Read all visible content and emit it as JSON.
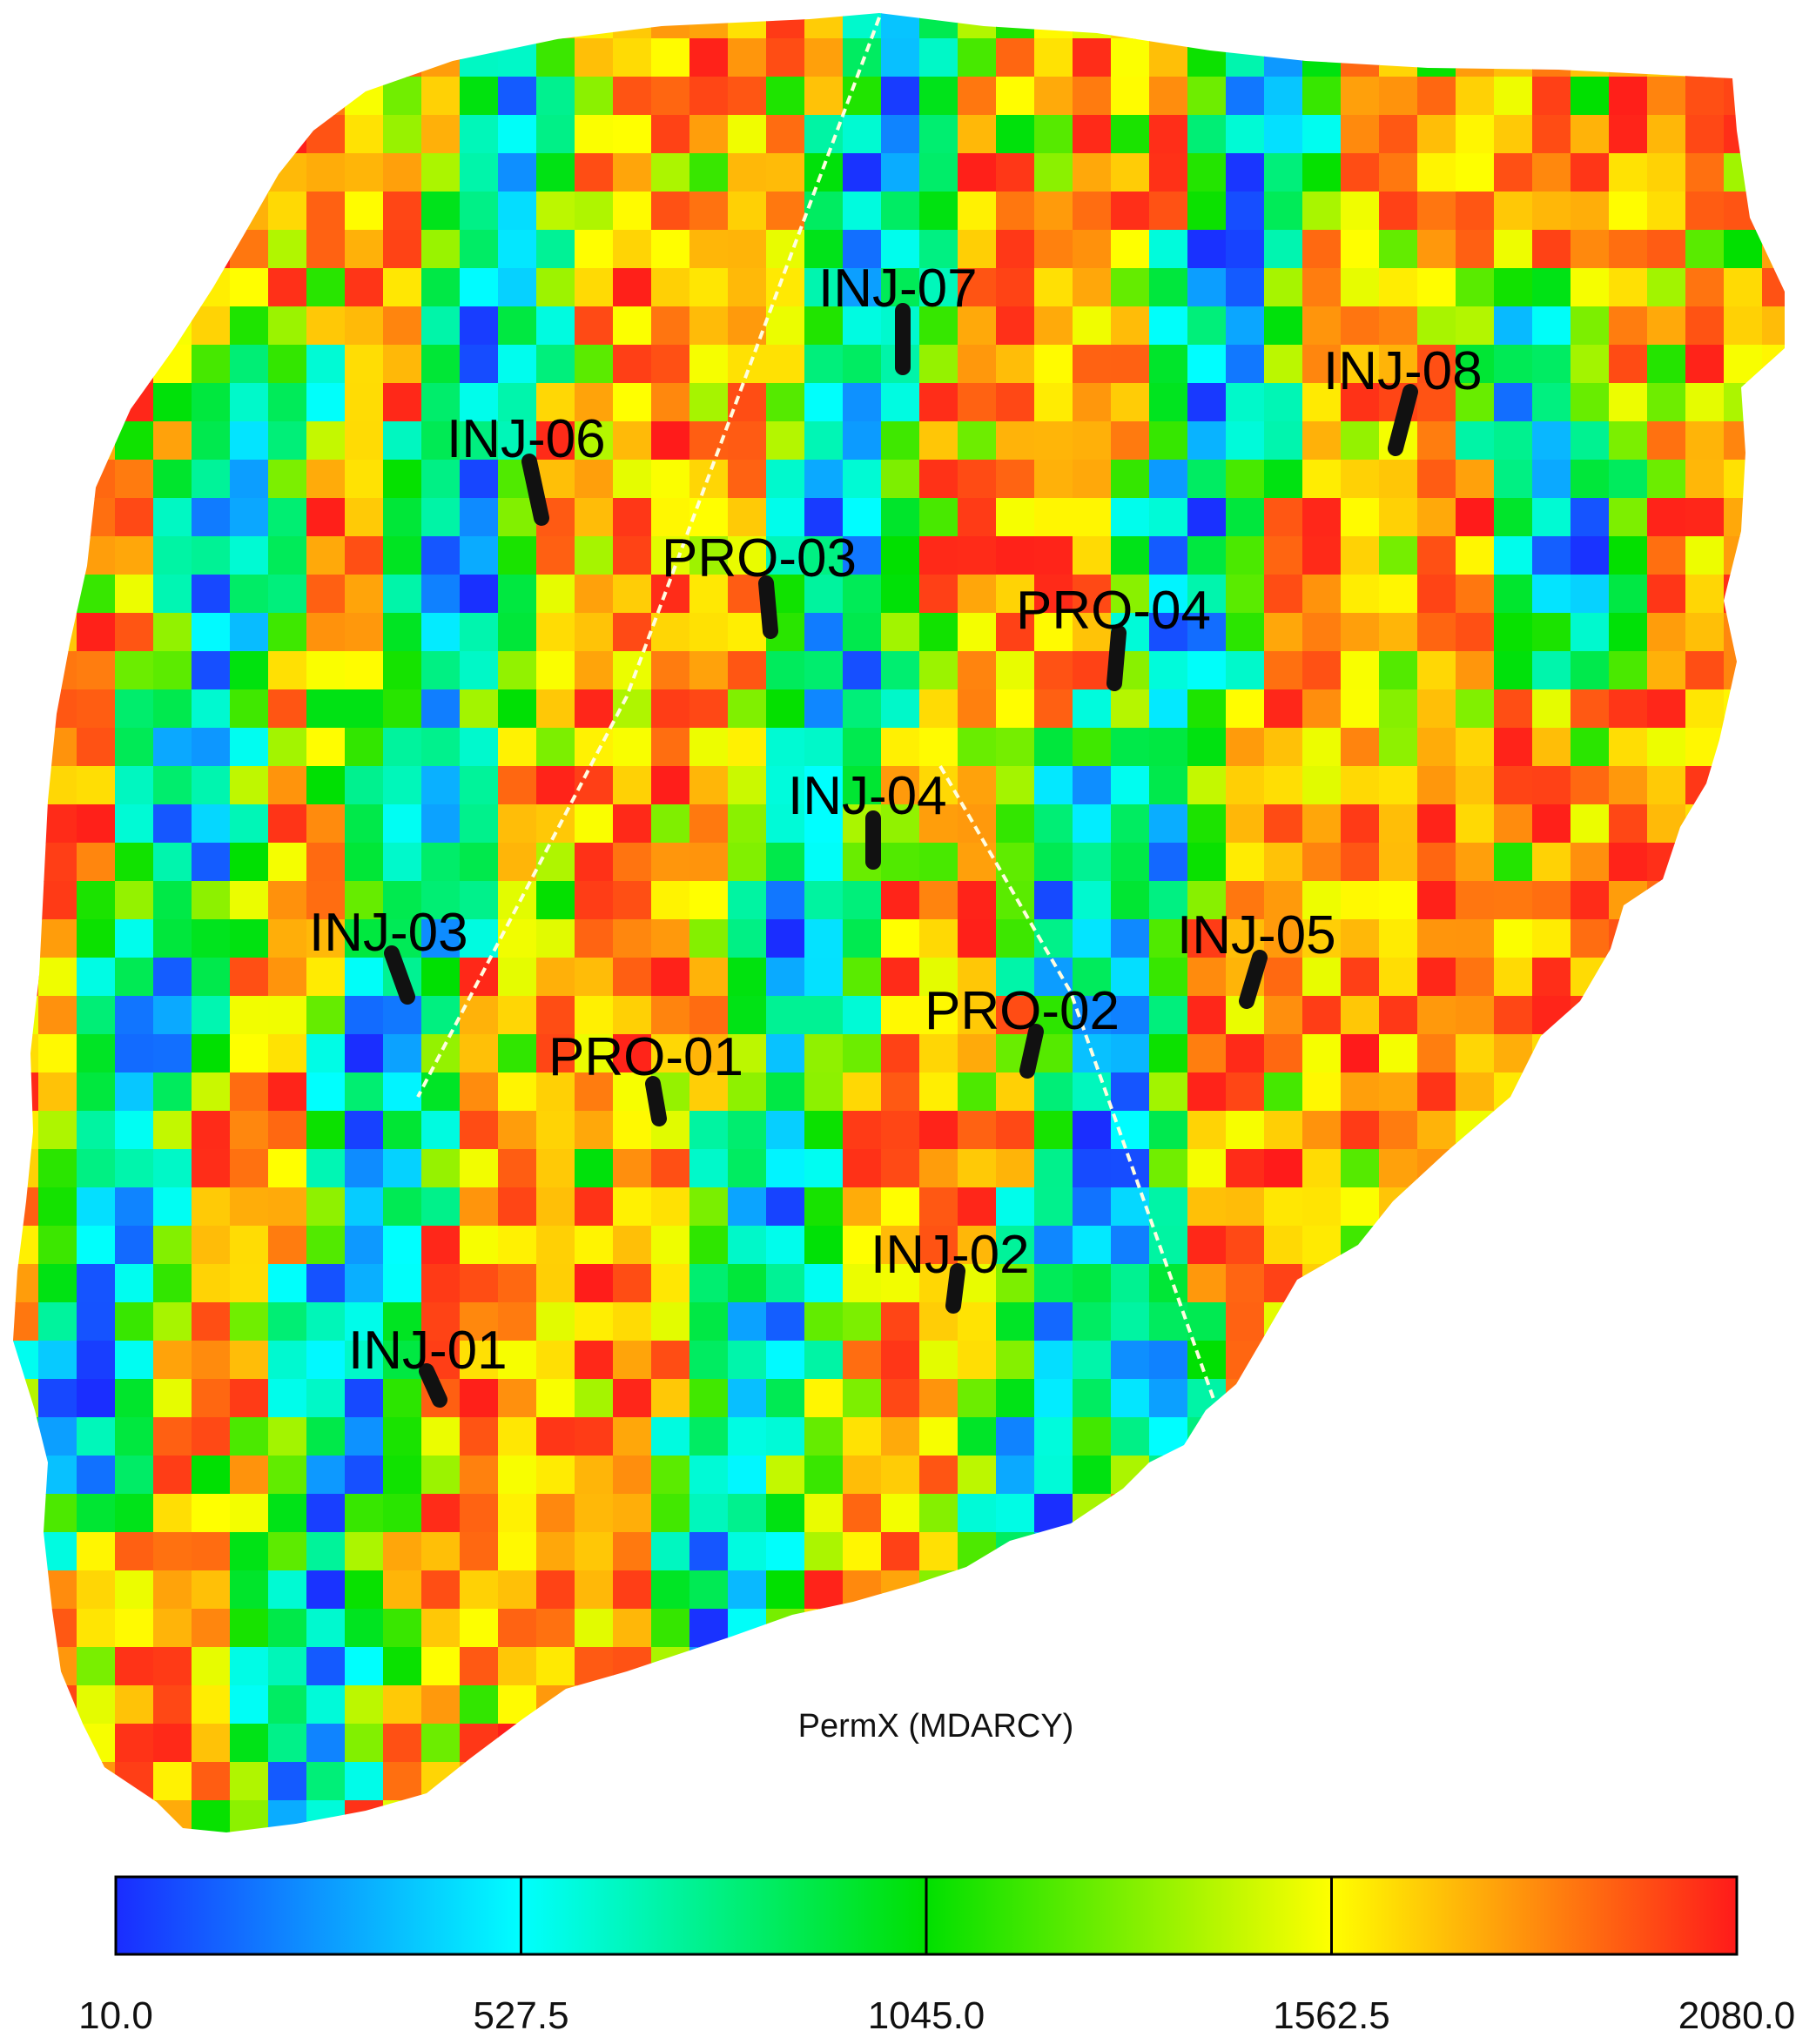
{
  "map": {
    "property_label": "PermX (MDARCY)",
    "colormap": [
      "#1a2cff",
      "#00ffff",
      "#00e000",
      "#ffff00",
      "#ff1a1a"
    ],
    "fault_color": "#fffde0",
    "well_color": "#111111"
  },
  "colorbar": {
    "min": 10.0,
    "max": 2080.0,
    "ticks": [
      "10.0",
      "527.5",
      "1045.0",
      "1562.5",
      "2080.0"
    ]
  },
  "wells": [
    {
      "name": "INJ-01",
      "type": "injector"
    },
    {
      "name": "INJ-02",
      "type": "injector"
    },
    {
      "name": "INJ-03",
      "type": "injector"
    },
    {
      "name": "INJ-04",
      "type": "injector"
    },
    {
      "name": "INJ-05",
      "type": "injector"
    },
    {
      "name": "INJ-06",
      "type": "injector"
    },
    {
      "name": "INJ-07",
      "type": "injector"
    },
    {
      "name": "INJ-08",
      "type": "injector"
    },
    {
      "name": "PRO-01",
      "type": "producer"
    },
    {
      "name": "PRO-02",
      "type": "producer"
    },
    {
      "name": "PRO-03",
      "type": "producer"
    },
    {
      "name": "PRO-04",
      "type": "producer"
    }
  ]
}
